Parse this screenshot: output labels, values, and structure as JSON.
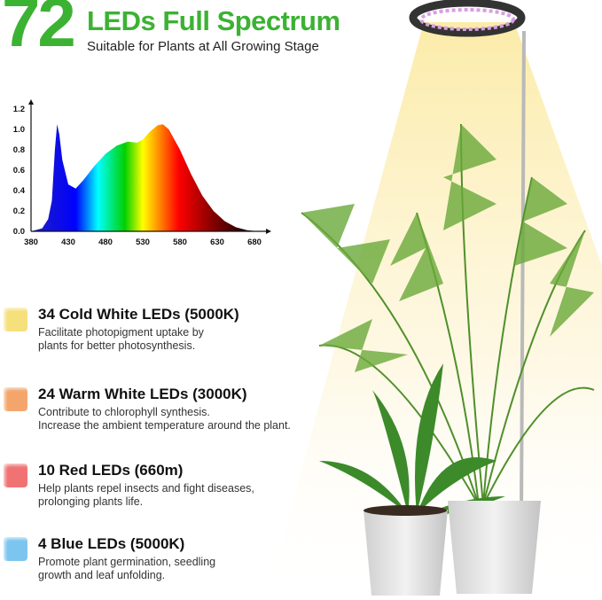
{
  "header": {
    "number": "72",
    "title": "LEDs Full Spectrum",
    "subtitle": "Suitable for Plants at All Growing Stage",
    "accent_color": "#3cb233"
  },
  "chart_data": {
    "type": "area",
    "xlabel": "",
    "ylabel": "",
    "xlim": [
      380,
      690
    ],
    "ylim": [
      0,
      1.25
    ],
    "x_ticks": [
      "380",
      "430",
      "480",
      "530",
      "580",
      "630",
      "680"
    ],
    "y_ticks": [
      "0.0",
      "0.2",
      "0.4",
      "0.6",
      "0.8",
      "1.0",
      "1.2"
    ],
    "fill": "visible-spectrum gradient",
    "grid": false,
    "x": [
      380,
      395,
      403,
      408,
      412,
      415,
      418,
      422,
      430,
      440,
      450,
      465,
      480,
      495,
      510,
      522,
      530,
      540,
      550,
      557,
      565,
      580,
      595,
      610,
      625,
      640,
      655,
      670,
      685
    ],
    "y": [
      0,
      0.03,
      0.12,
      0.3,
      0.8,
      1.05,
      0.95,
      0.7,
      0.46,
      0.42,
      0.5,
      0.64,
      0.76,
      0.84,
      0.88,
      0.87,
      0.9,
      0.98,
      1.04,
      1.05,
      1.0,
      0.8,
      0.56,
      0.35,
      0.2,
      0.1,
      0.04,
      0.01,
      0
    ]
  },
  "features": [
    {
      "heading": "34 Cold White LEDs (5000K)",
      "lines": [
        "Facilitate photopigment uptake by",
        "plants for better photosynthesis."
      ],
      "color": "#f6e07c"
    },
    {
      "heading": "24 Warm White LEDs (3000K)",
      "lines": [
        "Contribute to chlorophyll synthesis.",
        "Increase the ambient temperature around the plant."
      ],
      "color": "#f4a56b"
    },
    {
      "heading": "10 Red LEDs (660m)",
      "lines": [
        "Help plants repel insects and fight diseases,",
        "prolonging plants life."
      ],
      "color": "#f07272"
    },
    {
      "heading": "4 Blue LEDs (5000K)",
      "lines": [
        "Promote plant germination, seedling",
        "growth and leaf unfolding."
      ],
      "color": "#7cc5ef"
    }
  ]
}
